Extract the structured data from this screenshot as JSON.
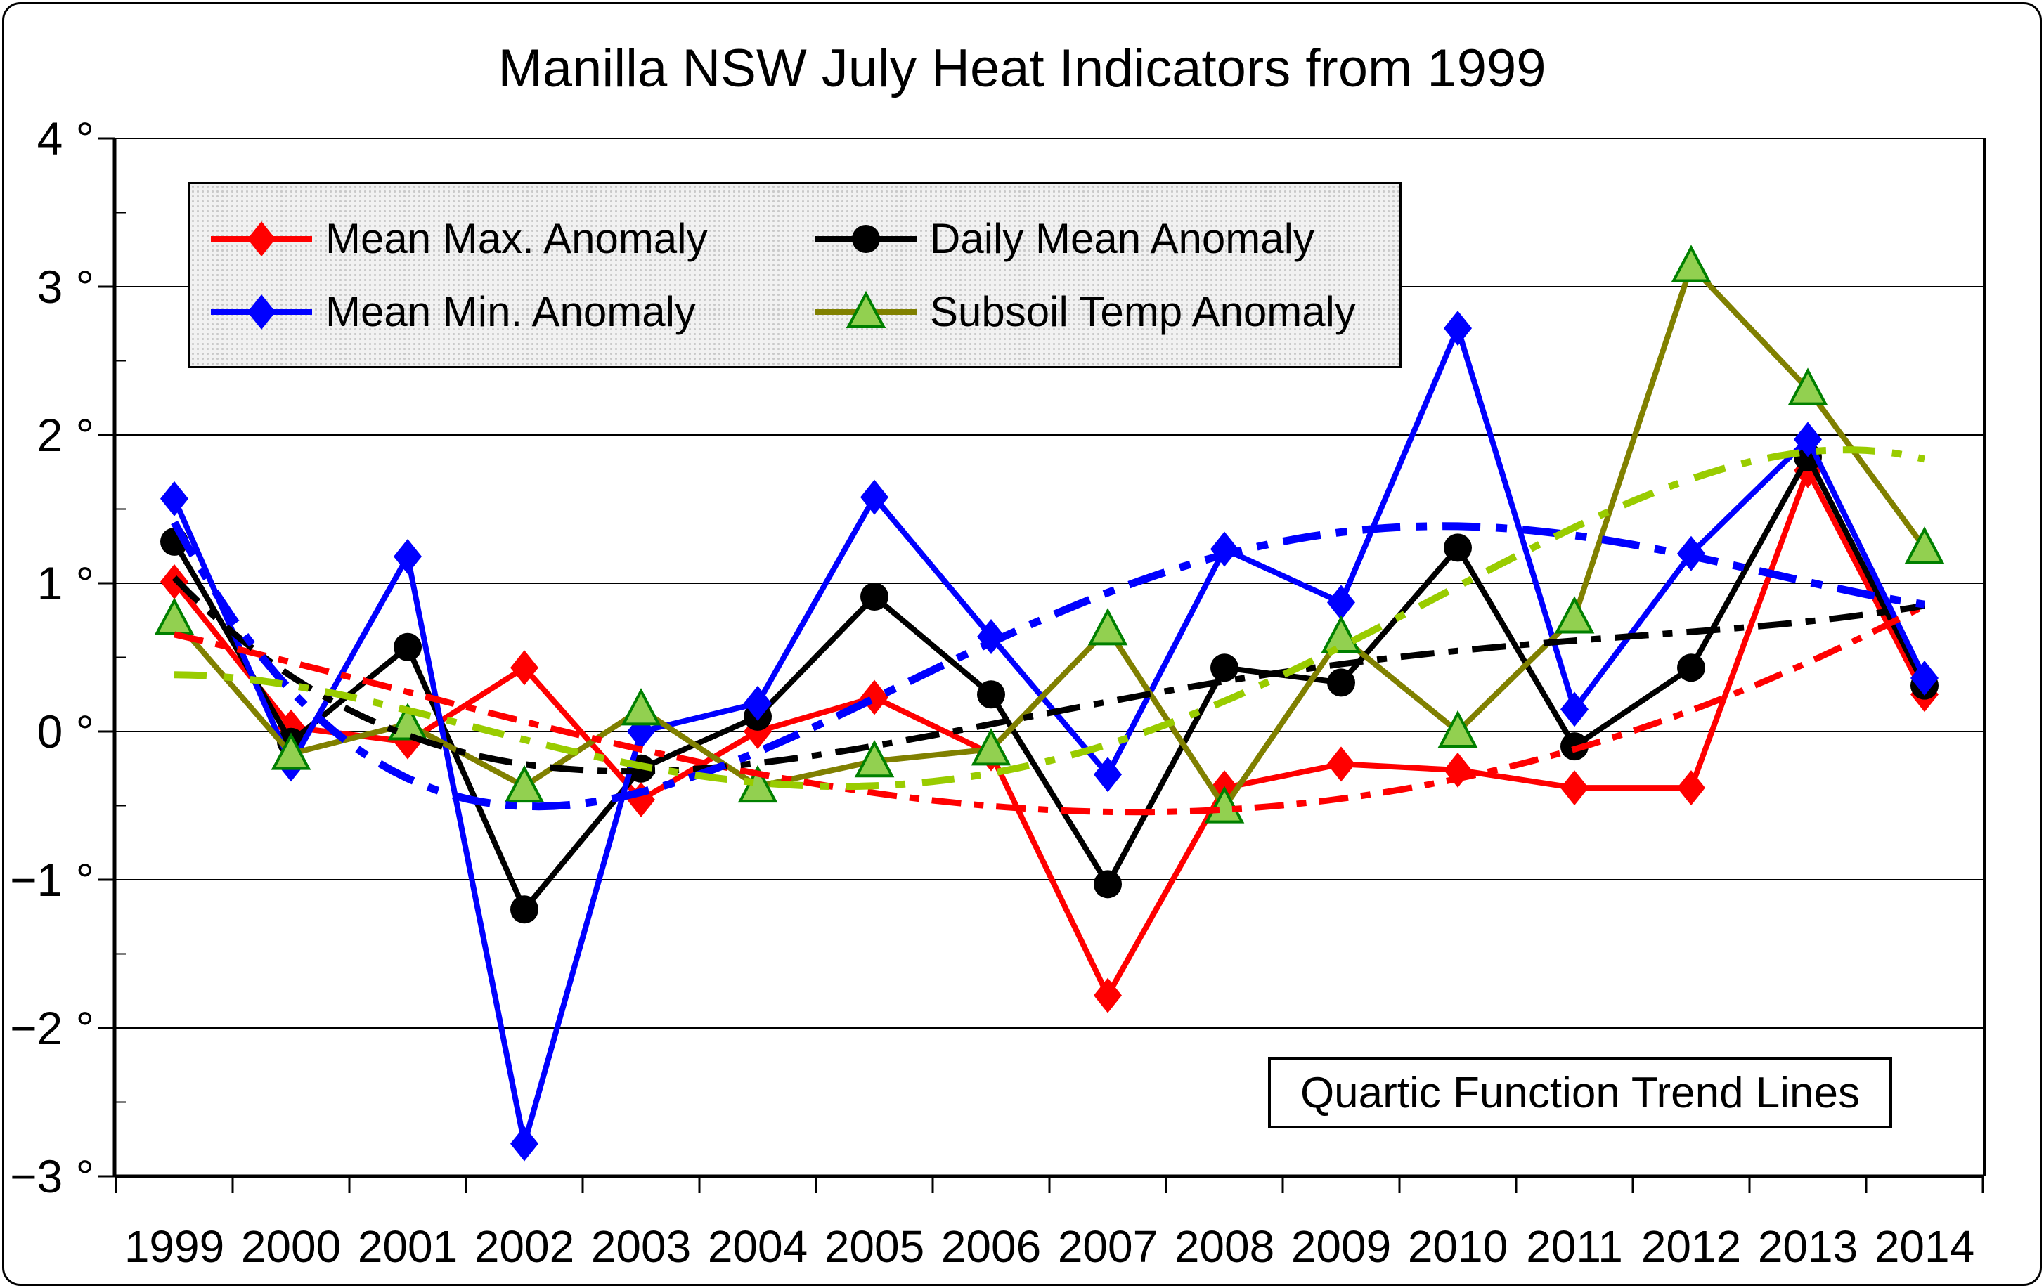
{
  "title": "Manilla NSW July Heat Indicators from 1999",
  "annotation": {
    "label": "Quartic Function Trend Lines"
  },
  "legend": {
    "items": [
      {
        "label": "Mean Max. Anomaly"
      },
      {
        "label": "Daily Mean Anomaly"
      },
      {
        "label": "Mean Min. Anomaly"
      },
      {
        "label": "Subsoil Temp Anomaly"
      }
    ]
  },
  "y_axis": {
    "tick_labels": [
      "4 °",
      "3 °",
      "2 °",
      "1 °",
      "0 °",
      "−1 °",
      "−2 °",
      "−3 °"
    ],
    "tick_values": [
      4,
      3,
      2,
      1,
      0,
      -1,
      -2,
      -3
    ],
    "min": -3,
    "max": 4
  },
  "x_axis": {
    "years": [
      "1999",
      "2000",
      "2001",
      "2002",
      "2003",
      "2004",
      "2005",
      "2006",
      "2007",
      "2008",
      "2009",
      "2010",
      "2011",
      "2012",
      "2013",
      "2014"
    ]
  },
  "chart_data": {
    "type": "line",
    "title": "Manilla NSW July Heat Indicators from 1999",
    "x": [
      "1999",
      "2000",
      "2001",
      "2002",
      "2003",
      "2004",
      "2005",
      "2006",
      "2007",
      "2008",
      "2009",
      "2010",
      "2011",
      "2012",
      "2013",
      "2014"
    ],
    "ylim": [
      -3,
      4
    ],
    "grid": "horizontal-major",
    "legend_position": "top-left-inside",
    "unit": "°C anomaly",
    "trend": {
      "type": "quartic",
      "label": "Quartic Function Trend Lines"
    },
    "series": [
      {
        "name": "Mean Max. Anomaly",
        "color": "#FF0000",
        "marker": "diamond",
        "marker_fill": "#FF0000",
        "trend_color": "#FF0000",
        "values": [
          1.01,
          0.03,
          -0.07,
          0.43,
          -0.46,
          0.0,
          0.23,
          -0.15,
          -1.78,
          -0.38,
          -0.22,
          -0.26,
          -0.38,
          -0.38,
          1.76,
          0.25
        ]
      },
      {
        "name": "Daily Mean Anomaly",
        "color": "#000000",
        "marker": "circle",
        "marker_fill": "#000000",
        "trend_color": "#000000",
        "values": [
          1.28,
          -0.07,
          0.57,
          -1.2,
          -0.25,
          0.1,
          0.91,
          0.25,
          -1.03,
          0.43,
          0.33,
          1.24,
          -0.1,
          0.43,
          1.85,
          0.31
        ]
      },
      {
        "name": "Mean Min. Anomaly",
        "color": "#0000FF",
        "marker": "diamond",
        "marker_fill": "#0000FF",
        "trend_color": "#0000FF",
        "values": [
          1.57,
          -0.22,
          1.18,
          -2.78,
          0.0,
          0.19,
          1.58,
          0.64,
          -0.29,
          1.23,
          0.87,
          2.72,
          0.15,
          1.2,
          1.97,
          0.36
        ]
      },
      {
        "name": "Subsoil Temp Anomaly",
        "color": "#808000",
        "marker": "triangle",
        "marker_fill": "#92D050",
        "marker_stroke": "#008000",
        "trend_color": "#99CC00",
        "values": [
          0.76,
          -0.15,
          0.05,
          -0.37,
          0.15,
          -0.37,
          -0.2,
          -0.12,
          0.69,
          -0.51,
          0.64,
          0.0,
          0.77,
          3.14,
          2.31,
          1.24
        ]
      }
    ]
  }
}
